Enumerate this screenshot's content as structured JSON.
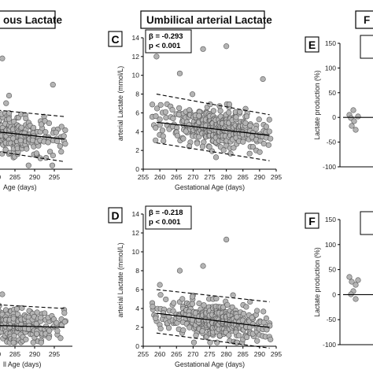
{
  "headers": {
    "left": "ous Lactate",
    "middle": "Umbilical arterial Lactate",
    "right": "F"
  },
  "chart_data": [
    {
      "id": "A",
      "type": "scatter",
      "x_ticks": [
        "280",
        "285",
        "290",
        "295"
      ],
      "xlabel": "Age (days)",
      "trend": {
        "x": [
          258,
          293
        ],
        "y": [
          4.8,
          3.2
        ]
      },
      "band_upper": {
        "x": [
          258,
          293
        ],
        "y": [
          7.0,
          5.6
        ]
      },
      "band_lower": {
        "x": [
          258,
          293
        ],
        "y": [
          3.0,
          0.8
        ]
      },
      "notable_points": [
        {
          "x": 277,
          "y": 11.8
        },
        {
          "x": 290,
          "y": 9.0
        }
      ]
    },
    {
      "id": "C",
      "type": "scatter",
      "letter": "C",
      "stats": [
        "β = -0.293",
        "p < 0.001"
      ],
      "xlabel": "Gestational Age (days)",
      "ylabel": "arterial Lactate (mmol/L)",
      "x_ticks": [
        "255",
        "260",
        "265",
        "270",
        "275",
        "280",
        "285",
        "290",
        "295"
      ],
      "y_ticks": [
        "0",
        "2",
        "4",
        "6",
        "8",
        "10",
        "12",
        "14"
      ],
      "xlim": [
        255,
        295
      ],
      "ylim": [
        0,
        14
      ],
      "trend": {
        "x": [
          259,
          293
        ],
        "y": [
          5.0,
          3.6
        ]
      },
      "band_upper": {
        "x": [
          259,
          293
        ],
        "y": [
          8.0,
          5.8
        ]
      },
      "band_lower": {
        "x": [
          259,
          293
        ],
        "y": [
          2.8,
          0.9
        ]
      },
      "notable_points": [
        {
          "x": 259,
          "y": 12.0
        },
        {
          "x": 273,
          "y": 12.8
        },
        {
          "x": 280,
          "y": 13.1
        },
        {
          "x": 266,
          "y": 10.2
        },
        {
          "x": 291,
          "y": 9.6
        }
      ]
    },
    {
      "id": "E",
      "type": "scatter",
      "letter": "E",
      "ylabel": "Lactate production (%)",
      "y_ticks": [
        "-100",
        "-50",
        "0",
        "50",
        "100",
        "150"
      ],
      "ylim": [
        -100,
        150
      ]
    },
    {
      "id": "B",
      "type": "scatter",
      "x_ticks": [
        "280",
        "285",
        "290",
        "295"
      ],
      "xlabel": "ll Age (days)",
      "trend": {
        "x": [
          258,
          293
        ],
        "y": [
          2.4,
          2.0
        ]
      },
      "band_upper": {
        "x": [
          258,
          293
        ],
        "y": [
          4.8,
          4.0
        ]
      },
      "notable_points": [
        {
          "x": 277,
          "y": 5.5
        }
      ]
    },
    {
      "id": "D",
      "type": "scatter",
      "letter": "D",
      "stats": [
        "β = -0.218",
        "p < 0.001"
      ],
      "xlabel": "Gestational Age (days)",
      "ylabel": "arterial Lactate (mmol/L)",
      "x_ticks": [
        "255",
        "260",
        "265",
        "270",
        "275",
        "280",
        "285",
        "290",
        "295"
      ],
      "y_ticks": [
        "0",
        "2",
        "4",
        "6",
        "8",
        "10",
        "12",
        "14"
      ],
      "xlim": [
        255,
        295
      ],
      "ylim": [
        0,
        14
      ],
      "trend": {
        "x": [
          259,
          293
        ],
        "y": [
          3.5,
          2.0
        ]
      },
      "band_upper": {
        "x": [
          259,
          293
        ],
        "y": [
          6.0,
          4.7
        ]
      },
      "band_lower": {
        "x": [
          259,
          293
        ],
        "y": [
          1.4,
          -0.2
        ]
      },
      "notable_points": [
        {
          "x": 280,
          "y": 11.3
        },
        {
          "x": 273,
          "y": 8.5
        },
        {
          "x": 266,
          "y": 8.0
        },
        {
          "x": 260,
          "y": 6.5
        }
      ]
    },
    {
      "id": "F",
      "type": "scatter",
      "letter": "F",
      "ylabel": "Lactate production (%)",
      "y_ticks": [
        "-100",
        "-50",
        "0",
        "50",
        "100",
        "150"
      ],
      "ylim": [
        -100,
        150
      ]
    }
  ]
}
